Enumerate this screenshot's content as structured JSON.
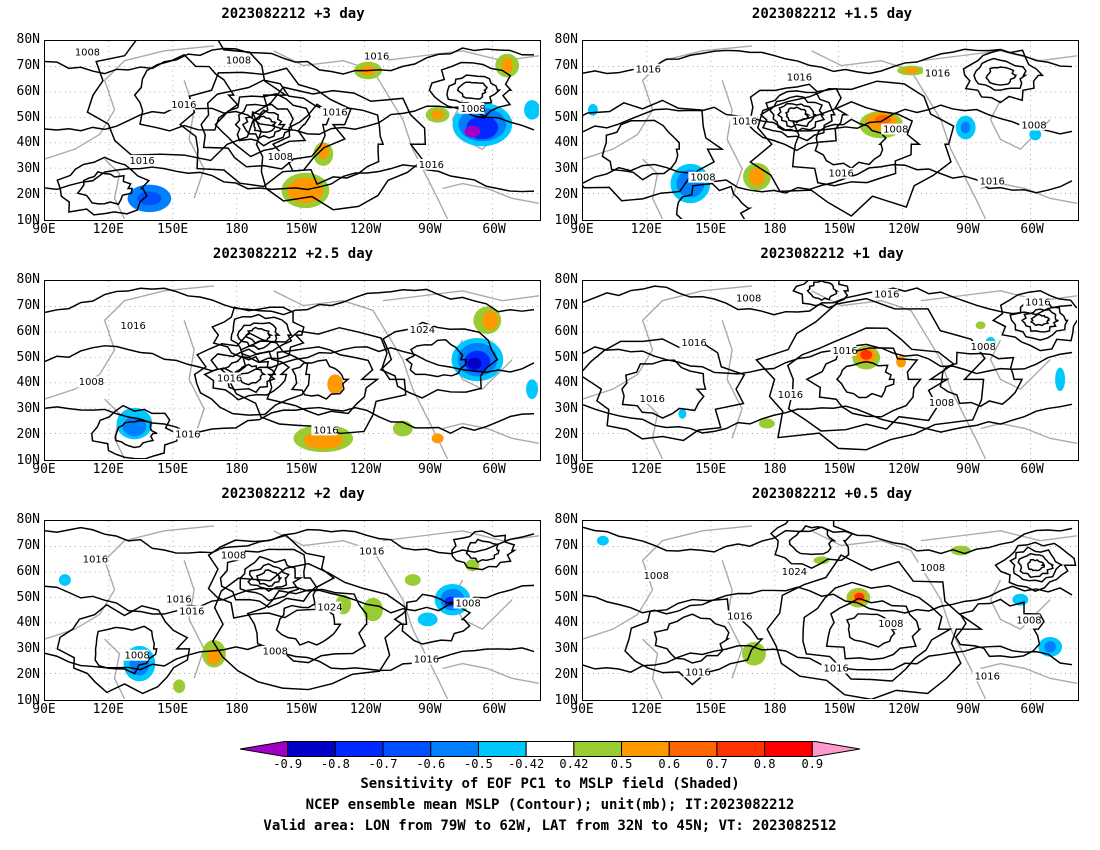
{
  "panels": [
    {
      "title": "2023082212 +3 day",
      "contour_labels": [
        "1008",
        "1016",
        "1008",
        "1016",
        "1008",
        "1016",
        "1008",
        "1016",
        "1016"
      ]
    },
    {
      "title": "2023082212 +1.5 day",
      "contour_labels": [
        "1016",
        "1016",
        "1016",
        "1016",
        "1008",
        "1008",
        "1016",
        "1008",
        "1016"
      ]
    },
    {
      "title": "2023082212 +2.5 day",
      "contour_labels": [
        "1016",
        "1016",
        "1016",
        "1024",
        "1008",
        "1016"
      ]
    },
    {
      "title": "2023082212 +1 day",
      "contour_labels": [
        "1016",
        "1016",
        "1016",
        "1008",
        "1016",
        "1008",
        "1016",
        "1008",
        "1016"
      ]
    },
    {
      "title": "2023082212 +2 day",
      "contour_labels": [
        "1016",
        "1008",
        "1016",
        "1008",
        "1008",
        "1008",
        "1024",
        "1016",
        "1016",
        "1016"
      ]
    },
    {
      "title": "2023082212 +0.5 day",
      "contour_labels": [
        "1016",
        "1016",
        "1008",
        "1008",
        "1016",
        "1024",
        "1008",
        "1016",
        "1008"
      ]
    }
  ],
  "lat_labels": [
    "80N",
    "70N",
    "60N",
    "50N",
    "40N",
    "30N",
    "20N",
    "10N"
  ],
  "lon_labels": [
    "90E",
    "120E",
    "150E",
    "180",
    "150W",
    "120W",
    "90W",
    "60W"
  ],
  "colorbar": {
    "labels": [
      "-0.9",
      "-0.8",
      "-0.7",
      "-0.6",
      "-0.5",
      "-0.42",
      "0.42",
      "0.5",
      "0.6",
      "0.7",
      "0.8",
      "0.9"
    ],
    "colors": [
      "#a000c8",
      "#0000c8",
      "#0028ff",
      "#0050ff",
      "#0080ff",
      "#00c8ff",
      "#ffffff",
      "#99cc33",
      "#ff9900",
      "#ff6600",
      "#ff3300",
      "#ff0000",
      "#ff99cc"
    ]
  },
  "caption": {
    "line1": "Sensitivity of EOF PC1 to MSLP field (Shaded)",
    "line2": "NCEP ensemble mean MSLP (Contour); unit(mb); IT:2023082212",
    "line3": "Valid area: LON from 79W to 62W, LAT from 32N to 45N; VT: 2023082512"
  }
}
